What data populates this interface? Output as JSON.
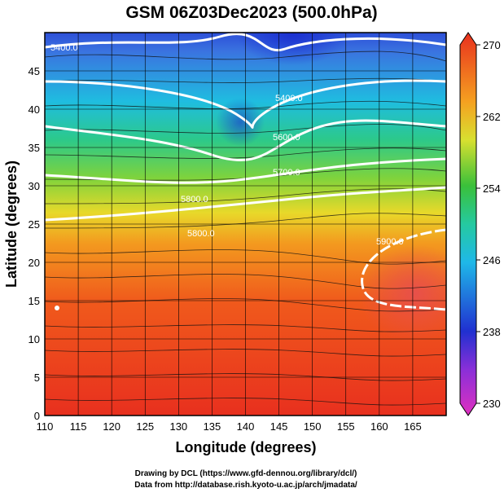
{
  "title": "GSM 06Z03Dec2023 (500.0hPa)",
  "x_axis": {
    "label": "Longitude (degrees)",
    "lim": [
      110,
      170
    ],
    "ticks": [
      110,
      115,
      120,
      125,
      130,
      135,
      140,
      145,
      150,
      155,
      160,
      165
    ]
  },
  "y_axis": {
    "label": "Latitude  (degrees)",
    "lim": [
      0,
      50
    ],
    "ticks": [
      0,
      5,
      10,
      15,
      20,
      25,
      30,
      35,
      40,
      45
    ]
  },
  "colorbar": {
    "lim": [
      230,
      270
    ],
    "ticks": [
      230,
      238,
      246,
      254,
      262,
      270
    ]
  },
  "contour_labels": [
    "5400.0",
    "5400.0",
    "5600.0",
    "5700.0",
    "5800.0",
    "5800.0",
    "5900.0"
  ],
  "footer": [
    "Drawing by DCL (https://www.gfd-dennou.org/library/dcl/)",
    "Data from http://database.rish.kyoto-u.ac.jp/arch/jmadata/"
  ]
}
